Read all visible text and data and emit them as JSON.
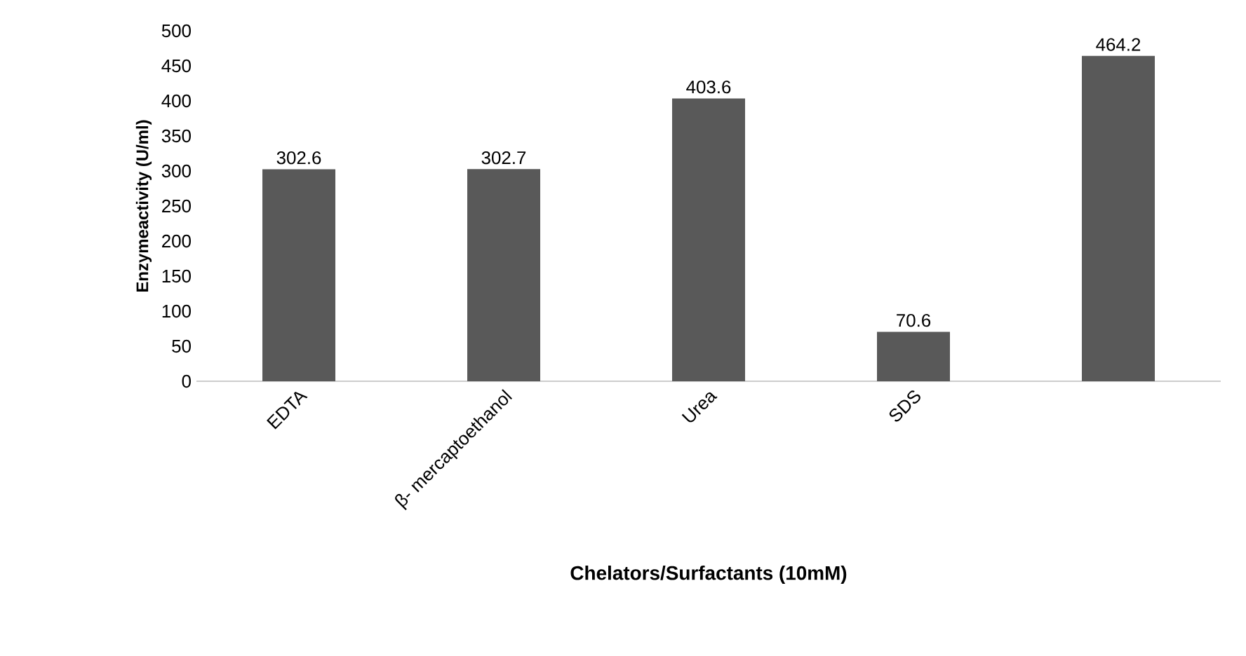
{
  "chart_data": {
    "type": "bar",
    "xlabel": "Chelators/Surfactants  (10mM)",
    "ylabel": "Enzymeactivity (U/ml)",
    "categories": [
      "EDTA",
      "β- mercaptoethanol",
      "Urea",
      "SDS",
      null
    ],
    "values": [
      302.6,
      302.7,
      403.6,
      70.6,
      464.2
    ],
    "color": "#595959",
    "ylim": [
      0,
      500
    ],
    "yticks": [
      0,
      50,
      100,
      150,
      200,
      250,
      300,
      350,
      400,
      450,
      500
    ],
    "data_labels": true
  }
}
